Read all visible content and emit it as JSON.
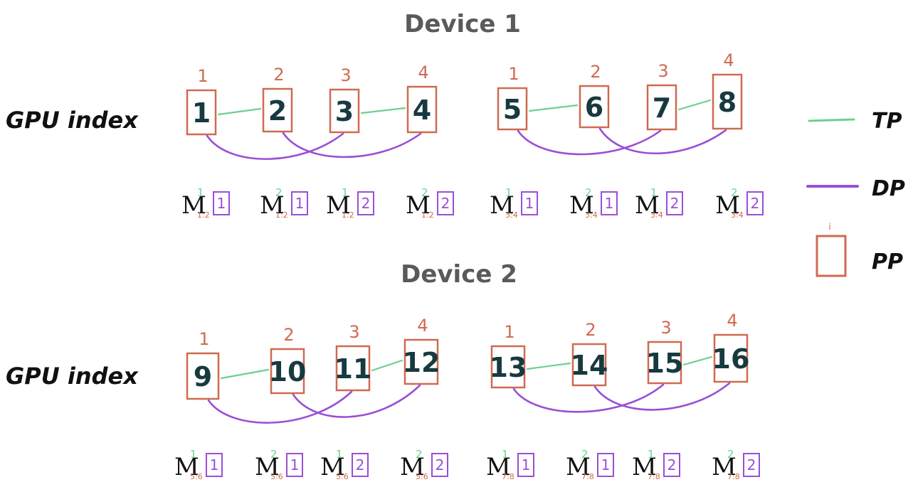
{
  "colors": {
    "tp": "#6cd08e",
    "dp": "#9a4fd6",
    "pp": "#d06a50",
    "gpu_text": "#173a40",
    "title": "#5a5a5a"
  },
  "devices": [
    {
      "title": "Device 1",
      "row_label": "GPU index",
      "gpus": [
        {
          "num": "1",
          "pp": "1"
        },
        {
          "num": "2",
          "pp": "2"
        },
        {
          "num": "3",
          "pp": "3"
        },
        {
          "num": "4",
          "pp": "4"
        },
        {
          "num": "5",
          "pp": "1"
        },
        {
          "num": "6",
          "pp": "2"
        },
        {
          "num": "7",
          "pp": "3"
        },
        {
          "num": "8",
          "pp": "4"
        }
      ],
      "models": [
        {
          "sup": "1",
          "sub": "1:2",
          "br": "1"
        },
        {
          "sup": "2",
          "sub": "1:2",
          "br": "1"
        },
        {
          "sup": "1",
          "sub": "1:2",
          "br": "2"
        },
        {
          "sup": "2",
          "sub": "1:2",
          "br": "2"
        },
        {
          "sup": "1",
          "sub": "3:4",
          "br": "1"
        },
        {
          "sup": "2",
          "sub": "3:4",
          "br": "1"
        },
        {
          "sup": "1",
          "sub": "3:4",
          "br": "2"
        },
        {
          "sup": "2",
          "sub": "3:4",
          "br": "2"
        }
      ]
    },
    {
      "title": "Device 2",
      "row_label": "GPU index",
      "gpus": [
        {
          "num": "9",
          "pp": "1"
        },
        {
          "num": "10",
          "pp": "2"
        },
        {
          "num": "11",
          "pp": "3"
        },
        {
          "num": "12",
          "pp": "4"
        },
        {
          "num": "13",
          "pp": "1"
        },
        {
          "num": "14",
          "pp": "2"
        },
        {
          "num": "15",
          "pp": "3"
        },
        {
          "num": "16",
          "pp": "4"
        }
      ],
      "models": [
        {
          "sup": "1",
          "sub": "5:6",
          "br": "1"
        },
        {
          "sup": "2",
          "sub": "5:6",
          "br": "1"
        },
        {
          "sup": "1",
          "sub": "5:6",
          "br": "2"
        },
        {
          "sup": "2",
          "sub": "5:6",
          "br": "2"
        },
        {
          "sup": "1",
          "sub": "7:8",
          "br": "1"
        },
        {
          "sup": "2",
          "sub": "7:8",
          "br": "1"
        },
        {
          "sup": "1",
          "sub": "7:8",
          "br": "2"
        },
        {
          "sup": "2",
          "sub": "7:8",
          "br": "2"
        }
      ]
    }
  ],
  "legend": {
    "tp_label": "TP",
    "dp_label": "DP",
    "pp_label": "PP",
    "pp_index": "i"
  }
}
